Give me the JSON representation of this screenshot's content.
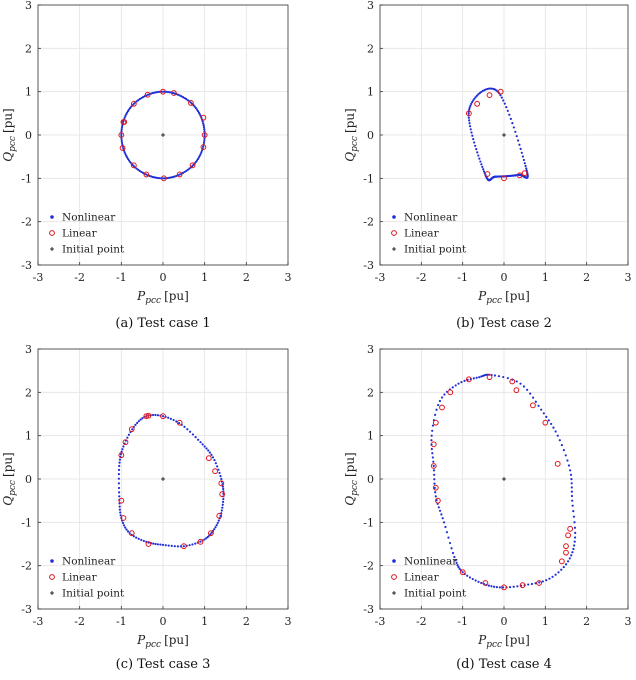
{
  "chart_data": [
    {
      "type": "scatter",
      "caption": "(a) Test case 1",
      "xlabel_main": "P",
      "xlabel_sub": "pcc",
      "xlabel_unit": "[pu]",
      "ylabel_main": "Q",
      "ylabel_sub": "pcc",
      "ylabel_unit": "[pu]",
      "xlim": [
        -3,
        3
      ],
      "ylim": [
        -3,
        3
      ],
      "xticks": [
        "-3",
        "-2",
        "-1",
        "0",
        "1",
        "2",
        "3"
      ],
      "yticks": [
        "-3",
        "-2",
        "-1",
        "0",
        "1",
        "2",
        "3"
      ],
      "grid": true,
      "legend_position": "bottom-left",
      "legend": [
        "Nonlinear",
        "Linear",
        "Initial point"
      ],
      "series": [
        {
          "name": "Nonlinear",
          "shape": "closed",
          "outline": [
            [
              1.0,
              0
            ],
            [
              0.92,
              0.4
            ],
            [
              0.7,
              0.72
            ],
            [
              0.36,
              0.93
            ],
            [
              0,
              1.0
            ],
            [
              -0.36,
              0.93
            ],
            [
              -0.7,
              0.72
            ],
            [
              -0.92,
              0.4
            ],
            [
              -1.0,
              0
            ],
            [
              -0.92,
              -0.4
            ],
            [
              -0.7,
              -0.72
            ],
            [
              -0.36,
              -0.93
            ],
            [
              0,
              -1.0
            ],
            [
              0.36,
              -0.93
            ],
            [
              0.7,
              -0.72
            ],
            [
              0.92,
              -0.4
            ]
          ]
        },
        {
          "name": "Linear",
          "points": [
            [
              0,
              1.0
            ],
            [
              0.26,
              0.97
            ],
            [
              0.67,
              0.74
            ],
            [
              0.97,
              0.4
            ],
            [
              1.0,
              0.0
            ],
            [
              0.97,
              -0.28
            ],
            [
              0.71,
              -0.7
            ],
            [
              0.4,
              -0.91
            ],
            [
              0.02,
              -1.0
            ],
            [
              -0.4,
              -0.91
            ],
            [
              -0.7,
              -0.7
            ],
            [
              -0.97,
              -0.3
            ],
            [
              -1.0,
              0.0
            ],
            [
              -0.95,
              0.3
            ],
            [
              -0.7,
              0.72
            ],
            [
              -0.37,
              0.93
            ],
            [
              -0.93,
              0.3
            ]
          ]
        },
        {
          "name": "Initial point",
          "points": [
            [
              0,
              0
            ]
          ]
        }
      ]
    },
    {
      "type": "scatter",
      "caption": "(b) Test case 2",
      "xlabel_main": "P",
      "xlabel_sub": "pcc",
      "xlabel_unit": "[pu]",
      "ylabel_main": "Q",
      "ylabel_sub": "pcc",
      "ylabel_unit": "[pu]",
      "xlim": [
        -3,
        3
      ],
      "ylim": [
        -3,
        3
      ],
      "xticks": [
        "-3",
        "-2",
        "-1",
        "0",
        "1",
        "2",
        "3"
      ],
      "yticks": [
        "-3",
        "-2",
        "-1",
        "0",
        "1",
        "2",
        "3"
      ],
      "grid": true,
      "legend_position": "bottom-left",
      "legend": [
        "Nonlinear",
        "Linear",
        "Initial point"
      ],
      "series": [
        {
          "name": "Nonlinear",
          "shape": "closed",
          "outline": [
            [
              -0.15,
              1.0
            ],
            [
              -0.85,
              0.55
            ],
            [
              -0.45,
              -0.92
            ],
            [
              -0.2,
              -0.96
            ],
            [
              0.35,
              -0.92
            ],
            [
              0.55,
              -0.82
            ]
          ]
        },
        {
          "name": "Linear",
          "points": [
            [
              -0.08,
              1.0
            ],
            [
              -0.35,
              0.92
            ],
            [
              -0.65,
              0.72
            ],
            [
              -0.85,
              0.5
            ],
            [
              -0.4,
              -0.9
            ],
            [
              0.0,
              -1.0
            ],
            [
              0.38,
              -0.93
            ],
            [
              0.5,
              -0.88
            ]
          ]
        },
        {
          "name": "Initial point",
          "points": [
            [
              0,
              0
            ]
          ]
        }
      ]
    },
    {
      "type": "scatter",
      "caption": "(c) Test case 3",
      "xlabel_main": "P",
      "xlabel_sub": "pcc",
      "xlabel_unit": "[pu]",
      "ylabel_main": "Q",
      "ylabel_sub": "pcc",
      "ylabel_unit": "[pu]",
      "xlim": [
        -3,
        3
      ],
      "ylim": [
        -3,
        3
      ],
      "xticks": [
        "-3",
        "-2",
        "-1",
        "0",
        "1",
        "2",
        "3"
      ],
      "yticks": [
        "-3",
        "-2",
        "-1",
        "0",
        "1",
        "2",
        "3"
      ],
      "grid": true,
      "legend_position": "bottom-left",
      "legend": [
        "Nonlinear",
        "Linear",
        "Initial point"
      ],
      "series": [
        {
          "name": "Nonlinear",
          "shape": "closed",
          "outline": [
            [
              0.0,
              1.45
            ],
            [
              0.45,
              1.25
            ],
            [
              0.9,
              0.85
            ],
            [
              1.2,
              0.5
            ],
            [
              1.4,
              0.0
            ],
            [
              1.45,
              -0.4
            ],
            [
              1.38,
              -0.85
            ],
            [
              1.2,
              -1.2
            ],
            [
              0.95,
              -1.42
            ],
            [
              0.5,
              -1.55
            ],
            [
              0.0,
              -1.52
            ],
            [
              -0.4,
              -1.45
            ],
            [
              -0.8,
              -1.25
            ],
            [
              -1.0,
              -0.9
            ],
            [
              -1.05,
              -0.4
            ],
            [
              -1.05,
              0.3
            ],
            [
              -0.95,
              0.75
            ],
            [
              -0.7,
              1.2
            ],
            [
              -0.4,
              1.45
            ]
          ]
        },
        {
          "name": "Linear",
          "points": [
            [
              -0.4,
              1.45
            ],
            [
              -0.35,
              1.46
            ],
            [
              0.0,
              1.45
            ],
            [
              0.4,
              1.3
            ],
            [
              1.1,
              0.48
            ],
            [
              1.25,
              0.18
            ],
            [
              1.4,
              -0.1
            ],
            [
              1.42,
              -0.35
            ],
            [
              1.35,
              -0.85
            ],
            [
              1.15,
              -1.25
            ],
            [
              0.9,
              -1.45
            ],
            [
              0.5,
              -1.55
            ],
            [
              -0.35,
              -1.5
            ],
            [
              -0.75,
              -1.25
            ],
            [
              -0.95,
              -0.9
            ],
            [
              -1.0,
              -0.5
            ],
            [
              -1.0,
              0.55
            ],
            [
              -0.9,
              0.85
            ],
            [
              -0.75,
              1.15
            ]
          ]
        },
        {
          "name": "Initial point",
          "points": [
            [
              0,
              0
            ]
          ]
        }
      ]
    },
    {
      "type": "scatter",
      "caption": "(d) Test case 4",
      "xlabel_main": "P",
      "xlabel_sub": "pcc",
      "xlabel_unit": "[pu]",
      "ylabel_main": "Q",
      "ylabel_sub": "pcc",
      "ylabel_unit": "[pu]",
      "xlim": [
        -3,
        3
      ],
      "ylim": [
        -3,
        3
      ],
      "xticks": [
        "-3",
        "-2",
        "-1",
        "0",
        "1",
        "2",
        "3"
      ],
      "yticks": [
        "-3",
        "-2",
        "-1",
        "0",
        "1",
        "2",
        "3"
      ],
      "grid": true,
      "legend_position": "bottom-left",
      "legend": [
        "Nonlinear",
        "Linear",
        "Initial point"
      ],
      "series": [
        {
          "name": "Nonlinear",
          "shape": "closed",
          "outline": [
            [
              -0.3,
              2.4
            ],
            [
              0.4,
              2.2
            ],
            [
              0.9,
              1.6
            ],
            [
              1.3,
              1.0
            ],
            [
              1.6,
              0.2
            ],
            [
              1.65,
              -0.5
            ],
            [
              1.72,
              -1.35
            ],
            [
              1.55,
              -1.9
            ],
            [
              1.1,
              -2.3
            ],
            [
              0.5,
              -2.45
            ],
            [
              -0.1,
              -2.5
            ],
            [
              -0.55,
              -2.4
            ],
            [
              -1.0,
              -2.15
            ],
            [
              -1.2,
              -1.8
            ],
            [
              -1.45,
              -1.0
            ],
            [
              -1.65,
              -0.4
            ],
            [
              -1.7,
              0.3
            ],
            [
              -1.75,
              1.0
            ],
            [
              -1.55,
              1.8
            ],
            [
              -1.1,
              2.2
            ],
            [
              -0.6,
              2.35
            ]
          ]
        },
        {
          "name": "Linear",
          "points": [
            [
              -0.35,
              2.35
            ],
            [
              -0.85,
              2.3
            ],
            [
              -1.3,
              2.0
            ],
            [
              -1.5,
              1.65
            ],
            [
              -1.65,
              1.3
            ],
            [
              -1.7,
              0.8
            ],
            [
              -1.7,
              0.3
            ],
            [
              -1.65,
              -0.2
            ],
            [
              -1.6,
              -0.5
            ],
            [
              -1.0,
              -2.15
            ],
            [
              -0.45,
              -2.4
            ],
            [
              0.0,
              -2.5
            ],
            [
              0.45,
              -2.45
            ],
            [
              0.85,
              -2.4
            ],
            [
              1.4,
              -1.9
            ],
            [
              1.5,
              -1.7
            ],
            [
              1.5,
              -1.55
            ],
            [
              1.55,
              -1.3
            ],
            [
              1.6,
              -1.15
            ],
            [
              1.3,
              0.35
            ],
            [
              1.0,
              1.3
            ],
            [
              0.7,
              1.7
            ],
            [
              0.3,
              2.05
            ],
            [
              0.2,
              2.25
            ]
          ]
        },
        {
          "name": "Initial point",
          "points": [
            [
              0,
              0
            ]
          ]
        }
      ]
    }
  ]
}
